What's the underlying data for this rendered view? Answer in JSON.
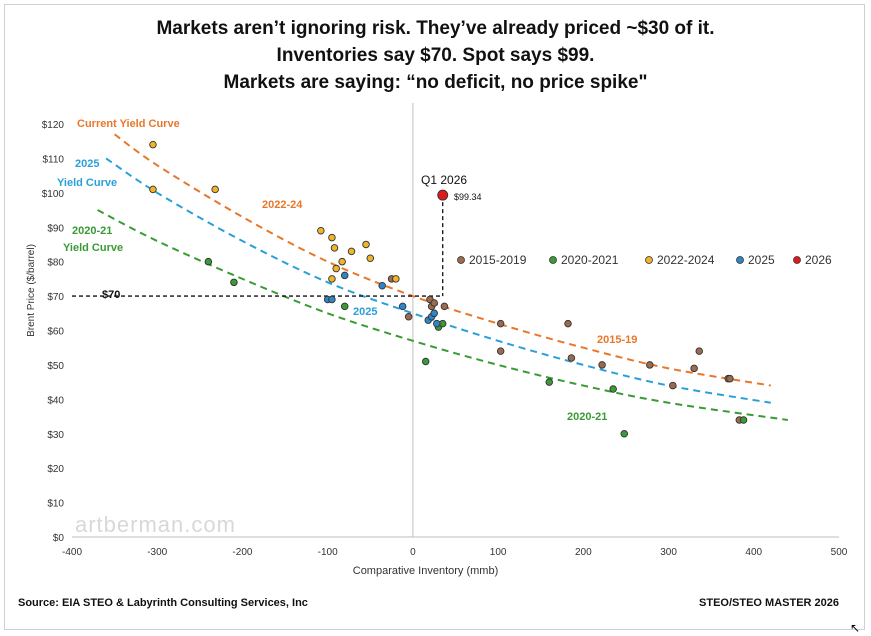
{
  "titles": [
    "Markets aren’t ignoring risk. They’ve already priced ~$30 of it.",
    "Inventories say $70. Spot says $99.",
    "Markets are saying: “no deficit, no price spike\""
  ],
  "source": "Source: EIA STEO & Labyrinth Consulting Services, Inc",
  "right_footer": "STEO/STEO MASTER 2026",
  "watermark": "artberman.com",
  "chart_data": {
    "type": "scatter",
    "xlabel": "Comparative Inventory (mmb)",
    "ylabel": "Brent Price ($/barrel)",
    "xlim": [
      -400,
      500
    ],
    "ylim": [
      0,
      120
    ],
    "x_ticks": [
      "-400",
      "-300",
      "-200",
      "-100",
      "0",
      "100",
      "200",
      "300",
      "400",
      "500"
    ],
    "y_ticks": [
      "$0",
      "$10",
      "$20",
      "$30",
      "$40",
      "$50",
      "$60",
      "$70",
      "$80",
      "$90",
      "$100",
      "$110",
      "$120"
    ],
    "legend": {
      "placement": "right",
      "entries": [
        "2015-2019",
        "2020-2021",
        "2022-2024",
        "2025",
        "2026"
      ]
    },
    "colors": {
      "2015-2019": "#9c6b4e",
      "2020-2021": "#3a9a35",
      "2022-2024": "#f0b429",
      "2025": "#2f86c6",
      "2026": "#e0191c"
    },
    "series": [
      {
        "name": "2015-2019",
        "points": [
          [
            -25,
            75
          ],
          [
            20,
            69
          ],
          [
            22,
            67
          ],
          [
            25,
            68
          ],
          [
            37,
            67
          ],
          [
            -5,
            64
          ],
          [
            103,
            62
          ],
          [
            103,
            54
          ],
          [
            182,
            62
          ],
          [
            186,
            52
          ],
          [
            222,
            50
          ],
          [
            278,
            50
          ],
          [
            305,
            44
          ],
          [
            330,
            49
          ],
          [
            336,
            54
          ],
          [
            370,
            46
          ],
          [
            372,
            46
          ],
          [
            383,
            34
          ]
        ]
      },
      {
        "name": "2020-2021",
        "points": [
          [
            -240,
            80
          ],
          [
            -210,
            74
          ],
          [
            -80,
            67
          ],
          [
            15,
            51
          ],
          [
            30,
            61
          ],
          [
            35,
            62
          ],
          [
            160,
            45
          ],
          [
            235,
            43
          ],
          [
            248,
            30
          ],
          [
            388,
            34
          ]
        ]
      },
      {
        "name": "2022-2024",
        "points": [
          [
            -305,
            114
          ],
          [
            -232,
            101
          ],
          [
            -305,
            101
          ],
          [
            -108,
            89
          ],
          [
            -95,
            87
          ],
          [
            -92,
            84
          ],
          [
            -72,
            83
          ],
          [
            -55,
            85
          ],
          [
            -50,
            81
          ],
          [
            -83,
            80
          ],
          [
            -90,
            78
          ],
          [
            -95,
            75
          ],
          [
            -20,
            75
          ]
        ]
      },
      {
        "name": "2025",
        "points": [
          [
            -100,
            69
          ],
          [
            -95,
            69
          ],
          [
            -80,
            76
          ],
          [
            -36,
            73
          ],
          [
            -12,
            67
          ],
          [
            18,
            63
          ],
          [
            22,
            64
          ],
          [
            25,
            65
          ],
          [
            28,
            62
          ]
        ]
      },
      {
        "name": "2026",
        "points": [
          [
            35,
            99.34
          ]
        ]
      }
    ],
    "curves": [
      {
        "name": "Current Yield Curve",
        "color": "#e8772a",
        "points": [
          [
            -350,
            117
          ],
          [
            -300,
            108
          ],
          [
            -200,
            93
          ],
          [
            -100,
            80
          ],
          [
            0,
            70
          ],
          [
            100,
            62
          ],
          [
            200,
            55
          ],
          [
            300,
            49
          ],
          [
            420,
            44
          ]
        ]
      },
      {
        "name": "2025 Yield Curve",
        "color": "#2aa0d8",
        "points": [
          [
            -360,
            110
          ],
          [
            -300,
            100
          ],
          [
            -200,
            86
          ],
          [
            -100,
            74
          ],
          [
            0,
            65
          ],
          [
            100,
            57
          ],
          [
            200,
            50
          ],
          [
            300,
            44
          ],
          [
            420,
            39
          ]
        ]
      },
      {
        "name": "2020-21 Yield Curve",
        "color": "#3a9a35",
        "points": [
          [
            -370,
            95
          ],
          [
            -300,
            86
          ],
          [
            -200,
            75
          ],
          [
            -100,
            65
          ],
          [
            0,
            57
          ],
          [
            100,
            50
          ],
          [
            200,
            44
          ],
          [
            300,
            39
          ],
          [
            440,
            34
          ]
        ]
      }
    ],
    "annotations": {
      "current_yield_curve": "Current Yield Curve",
      "yield_2025_a": "2025",
      "yield_2025_b": "Yield Curve",
      "yield_2020_a": "2020-21",
      "yield_2020_b": "Yield Curve",
      "label_2022_24": "2022-24",
      "label_2025": "2025",
      "label_2015_19": "2015-19",
      "label_2020_21": "2020-21",
      "q1_2026": "Q1 2026",
      "price_9934": "$99.34",
      "price_70": "$70"
    },
    "reference": {
      "y70": 70,
      "x_point": 35,
      "y_point": 99.34
    }
  }
}
